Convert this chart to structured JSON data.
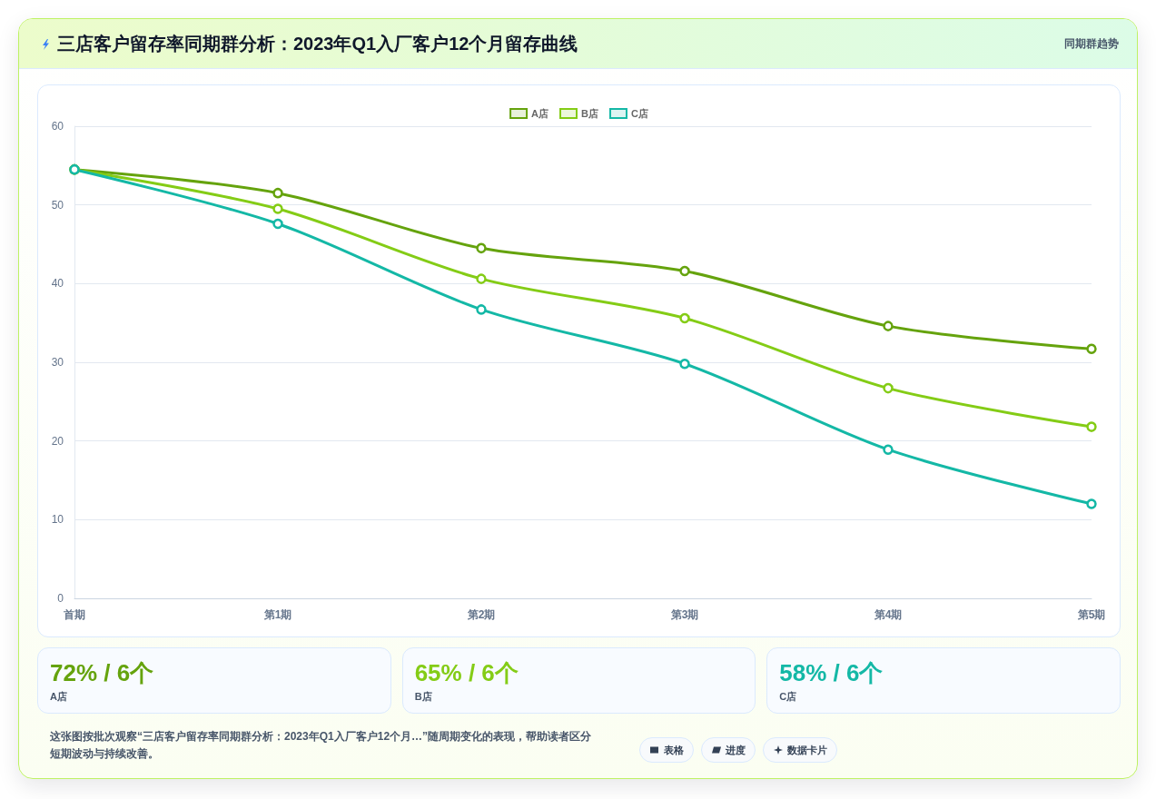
{
  "chart_data": [
    {
      "type": "line",
      "title": "三店客户留存率同期群分析：2023年Q1入厂客户12个月留存曲线",
      "subtitle": "同期群趋势",
      "categories": [
        "首期",
        "第1期",
        "第2期",
        "第3期",
        "第4期",
        "第5期"
      ],
      "series": [
        {
          "name": "A店",
          "color": "#65a30d",
          "values": [
            54.5,
            51.5,
            44.5,
            41.6,
            34.6,
            31.7
          ]
        },
        {
          "name": "B店",
          "color": "#84cc16",
          "values": [
            54.5,
            49.5,
            40.6,
            35.6,
            26.7,
            21.8
          ]
        },
        {
          "name": "C店",
          "color": "#14b8a6",
          "values": [
            54.5,
            47.6,
            36.7,
            29.8,
            18.9,
            12.0
          ]
        }
      ],
      "ylim": [
        0,
        60
      ],
      "yticks": [
        0,
        10,
        20,
        30,
        40,
        50,
        60
      ],
      "grid": "y",
      "legend": "top",
      "marker": "circle",
      "line_style": "solid",
      "annotations": [
        "这张图按批次观察“三店客户留存率同期群分析：2023年Q1入厂客户12个月…”随周期变化的表现，帮助读者区分短期波动与持续改善。",
        "表格",
        "进度",
        "数据卡片"
      ]
    },
    {
      "type": "other",
      "title": "72% / 6个",
      "subtitle": "A店",
      "color": "#65a30d"
    },
    {
      "type": "other",
      "title": "65% / 6个",
      "subtitle": "B店",
      "color": "#84cc16"
    },
    {
      "type": "other",
      "title": "58% / 6个",
      "subtitle": "C店",
      "color": "#14b8a6"
    }
  ]
}
